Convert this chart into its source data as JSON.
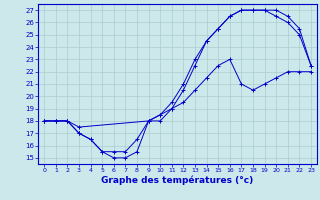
{
  "xlabel": "Graphe des températures (°c)",
  "bg_color": "#cce8ea",
  "grid_color": "#aacccc",
  "line_color": "#0000cc",
  "xlim": [
    -0.5,
    23.5
  ],
  "ylim": [
    14.5,
    27.5
  ],
  "xticks": [
    0,
    1,
    2,
    3,
    4,
    5,
    6,
    7,
    8,
    9,
    10,
    11,
    12,
    13,
    14,
    15,
    16,
    17,
    18,
    19,
    20,
    21,
    22,
    23
  ],
  "yticks": [
    15,
    16,
    17,
    18,
    19,
    20,
    21,
    22,
    23,
    24,
    25,
    26,
    27
  ],
  "line1_x": [
    0,
    1,
    2,
    3,
    4,
    5,
    6,
    7,
    8,
    9,
    10,
    11,
    12,
    13,
    14,
    15,
    16,
    17,
    18,
    19,
    20,
    21,
    22,
    23
  ],
  "line1_y": [
    18,
    18,
    18,
    17,
    16.5,
    15.5,
    15.0,
    15.0,
    15.5,
    18.0,
    18.0,
    19.0,
    20.5,
    22.5,
    24.5,
    25.5,
    26.5,
    27.0,
    27.0,
    27.0,
    27.0,
    26.5,
    25.5,
    22.5
  ],
  "line2_x": [
    0,
    1,
    2,
    3,
    4,
    5,
    6,
    7,
    8,
    9,
    10,
    11,
    12,
    13,
    14,
    15,
    16,
    17,
    18,
    19,
    20,
    21,
    22,
    23
  ],
  "line2_y": [
    18,
    18,
    18,
    17,
    16.5,
    15.5,
    15.5,
    15.5,
    16.5,
    18.0,
    18.5,
    19.5,
    21.0,
    23.0,
    24.5,
    25.5,
    26.5,
    27.0,
    27.0,
    27.0,
    26.5,
    26.0,
    25.0,
    22.5
  ],
  "line3_x": [
    0,
    1,
    2,
    3,
    9,
    10,
    11,
    12,
    13,
    14,
    15,
    16,
    17,
    18,
    19,
    20,
    21,
    22,
    23
  ],
  "line3_y": [
    18,
    18,
    18,
    17.5,
    18.0,
    18.5,
    19.0,
    19.5,
    20.5,
    21.5,
    22.5,
    23.0,
    21.0,
    20.5,
    21.0,
    21.5,
    22.0,
    22.0,
    22.0
  ]
}
